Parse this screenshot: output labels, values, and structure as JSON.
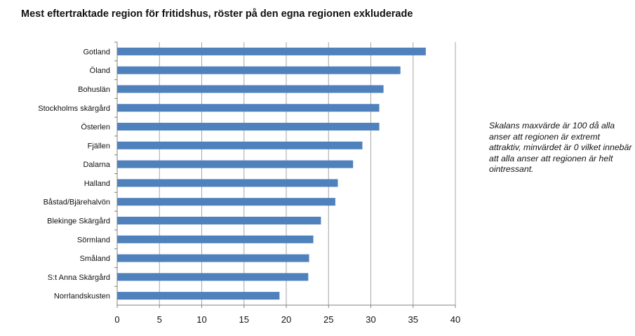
{
  "title": "Mest eftertraktade region för fritidshus, röster på den egna regionen exkluderade",
  "note": "Skalans maxvärde är 100 då alla anser att regionen är extremt attraktiv, minvärdet är 0 vilket innebär att alla anser att regionen är helt ointressant.",
  "colors": {
    "bar": "#4f81bd",
    "grid": "#a6a6a6",
    "axis": "#808080",
    "text": "#111111"
  },
  "chart_data": {
    "type": "bar",
    "orientation": "horizontal",
    "title": "Mest eftertraktade region för fritidshus, röster på den egna regionen exkluderade",
    "categories": [
      "Gotland",
      "Öland",
      "Bohuslän",
      "Stockholms skärgård",
      "Österlen",
      "Fjällen",
      "Dalarna",
      "Halland",
      "Båstad/Bjärehalvön",
      "Blekinge Skärgård",
      "Sörmland",
      "Småland",
      "S:t Anna Skärgård",
      "Norrlandskusten"
    ],
    "values": [
      36.5,
      33.5,
      31.5,
      31.0,
      31.0,
      29.0,
      27.9,
      26.1,
      25.8,
      24.1,
      23.2,
      22.7,
      22.6,
      19.2
    ],
    "xlim": [
      0,
      40
    ],
    "xticks": [
      "0",
      "5",
      "10",
      "15",
      "20",
      "25",
      "30",
      "35",
      "40"
    ],
    "grid": true,
    "legend": "none"
  }
}
